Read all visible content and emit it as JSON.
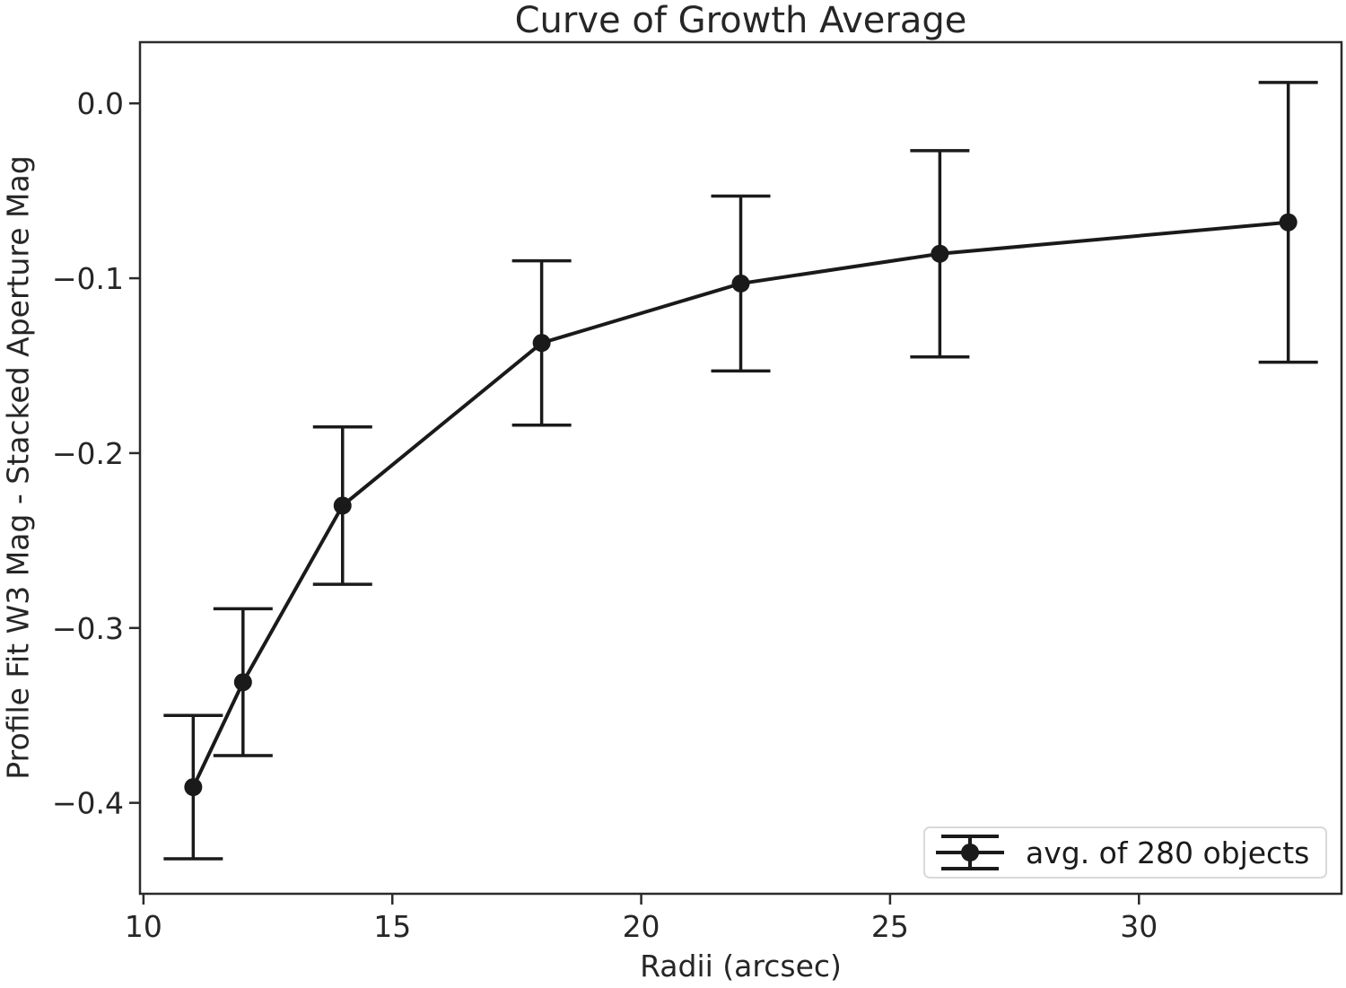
{
  "chart_data": {
    "type": "line",
    "title": "Curve of Growth Average",
    "xlabel": "Radii (arcsec)",
    "ylabel": "Profile Fit W3 Mag - Stacked Aperture Mag",
    "x_ticks": [
      10,
      15,
      20,
      25,
      30
    ],
    "y_ticks": [
      0.0,
      -0.1,
      -0.2,
      -0.3,
      -0.4
    ],
    "xlim": [
      9.93,
      34.07
    ],
    "ylim": [
      -0.452,
      0.035
    ],
    "grid": false,
    "legend_position": "lower right",
    "colors": {
      "data": "#1a1a1a",
      "axes": "#2b2b2b",
      "text": "#262626",
      "legend_border": "#d9d9d9",
      "background": "#ffffff"
    },
    "series": [
      {
        "name": "avg. of 280 objects",
        "marker": "filled-circle",
        "x": [
          11,
          12,
          14,
          18,
          22,
          26,
          33
        ],
        "y": [
          -0.391,
          -0.331,
          -0.23,
          -0.137,
          -0.103,
          -0.086,
          -0.068
        ],
        "yerr": [
          0.041,
          0.042,
          0.045,
          0.047,
          0.05,
          0.059,
          0.08
        ]
      }
    ]
  }
}
